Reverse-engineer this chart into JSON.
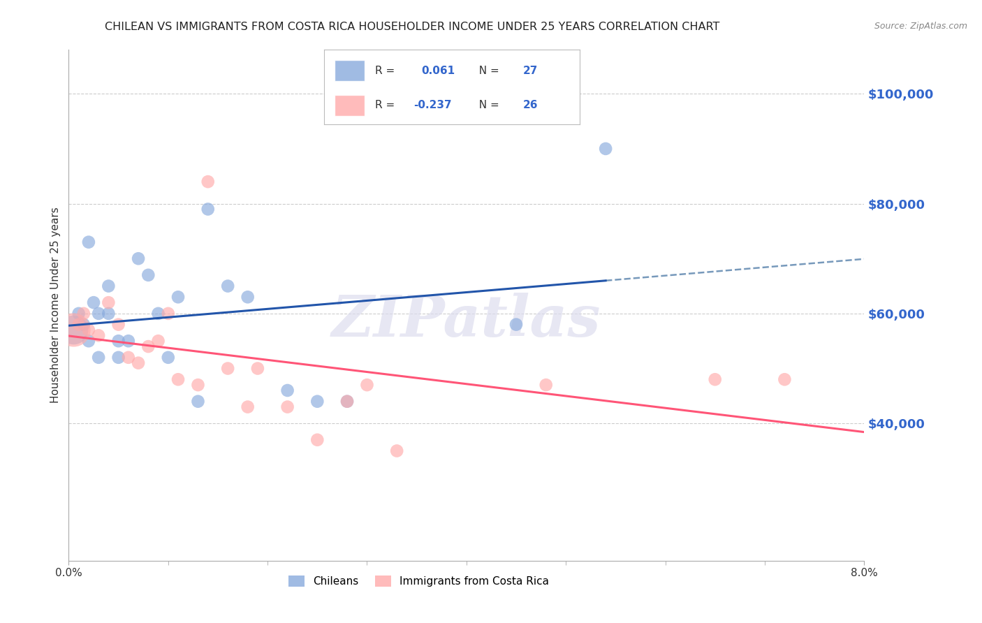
{
  "title": "CHILEAN VS IMMIGRANTS FROM COSTA RICA HOUSEHOLDER INCOME UNDER 25 YEARS CORRELATION CHART",
  "source": "Source: ZipAtlas.com",
  "ylabel": "Householder Income Under 25 years",
  "xlim": [
    0.0,
    0.08
  ],
  "ylim": [
    15000,
    108000
  ],
  "xticks": [
    0.0,
    0.08
  ],
  "xtick_labels": [
    "0.0%",
    "8.0%"
  ],
  "right_yticks": [
    40000,
    60000,
    80000,
    100000
  ],
  "right_ytick_labels": [
    "$40,000",
    "$60,000",
    "$80,000",
    "$100,000"
  ],
  "chileans_x": [
    0.0005,
    0.001,
    0.0015,
    0.002,
    0.002,
    0.0025,
    0.003,
    0.003,
    0.004,
    0.004,
    0.005,
    0.005,
    0.006,
    0.007,
    0.008,
    0.009,
    0.01,
    0.011,
    0.013,
    0.014,
    0.016,
    0.018,
    0.022,
    0.025,
    0.028,
    0.045,
    0.054
  ],
  "chileans_y": [
    57000,
    60000,
    58000,
    73000,
    55000,
    62000,
    60000,
    52000,
    60000,
    65000,
    55000,
    52000,
    55000,
    70000,
    67000,
    60000,
    52000,
    63000,
    44000,
    79000,
    65000,
    63000,
    46000,
    44000,
    44000,
    58000,
    90000
  ],
  "costarica_x": [
    0.0005,
    0.001,
    0.0015,
    0.002,
    0.003,
    0.004,
    0.005,
    0.006,
    0.007,
    0.008,
    0.009,
    0.01,
    0.011,
    0.013,
    0.014,
    0.016,
    0.018,
    0.019,
    0.022,
    0.025,
    0.028,
    0.03,
    0.033,
    0.048,
    0.065,
    0.072
  ],
  "costarica_y": [
    57000,
    58000,
    60000,
    57000,
    56000,
    62000,
    58000,
    52000,
    51000,
    54000,
    55000,
    60000,
    48000,
    47000,
    84000,
    50000,
    43000,
    50000,
    43000,
    37000,
    44000,
    47000,
    35000,
    47000,
    48000,
    48000
  ],
  "chilean_R": 0.061,
  "chilean_N": 27,
  "costarica_R": -0.237,
  "costarica_N": 26,
  "blue_scatter_color": "#88AADD",
  "pink_scatter_color": "#FFAAAA",
  "blue_line_color": "#2255AA",
  "pink_line_color": "#FF5577",
  "dashed_line_color": "#7799BB",
  "watermark_text": "ZIPatlas",
  "title_fontsize": 11.5,
  "axis_label_fontsize": 11,
  "tick_fontsize": 11,
  "right_tick_color": "#3366CC",
  "background_color": "#FFFFFF",
  "grid_color": "#CCCCCC",
  "dashed_line_y": 60000,
  "legend_text_color": "#3366CC",
  "legend_label_color": "#333333"
}
